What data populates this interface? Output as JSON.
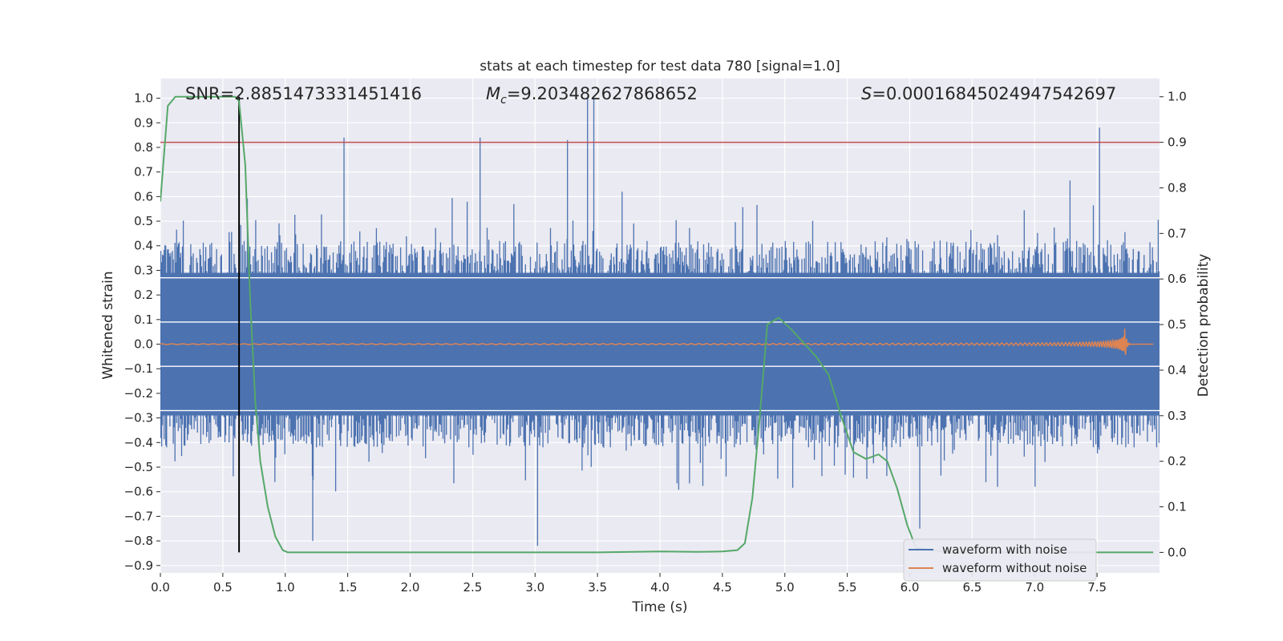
{
  "chart_data": {
    "type": "line",
    "title": "stats at each timestep for test data 780 [signal=1.0]",
    "xlabel": "Time (s)",
    "ylabel": "Whitened strain",
    "ylabel_right": "Detection probability",
    "xlim": [
      0.0,
      8.0
    ],
    "ylim": [
      -0.93,
      1.08
    ],
    "ylim_right": [
      -0.045,
      1.04
    ],
    "x_ticks": [
      "0.0",
      "0.5",
      "1.0",
      "1.5",
      "2.0",
      "2.5",
      "3.0",
      "3.5",
      "4.0",
      "4.5",
      "5.0",
      "5.5",
      "6.0",
      "6.5",
      "7.0",
      "7.5"
    ],
    "y_ticks": [
      "1.0",
      "0.9",
      "0.8",
      "0.7",
      "0.6",
      "0.5",
      "0.4",
      "0.3",
      "0.2",
      "0.1",
      "0.0",
      "−0.1",
      "−0.2",
      "−0.3",
      "−0.4",
      "−0.5",
      "−0.6",
      "−0.7",
      "−0.8",
      "−0.9"
    ],
    "y_ticks_right": [
      "1.0",
      "0.9",
      "0.8",
      "0.7",
      "0.6",
      "0.5",
      "0.4",
      "0.3",
      "0.2",
      "0.1",
      "0.0"
    ],
    "annotations": {
      "snr": "SNR=2.8851473331451416",
      "mc_symbol": "M",
      "mc_sub": "c",
      "mc_value": "=9.203482627868652",
      "s_symbol": "S",
      "s_value": "=0.00016845024947542697"
    },
    "legend": {
      "placement": "lower-right",
      "entries": [
        "waveform with noise",
        "waveform without noise"
      ]
    },
    "series": [
      {
        "name": "waveform with noise",
        "color": "#4c72b0",
        "kind": "noise",
        "envelope": {
          "typical_abs_max": 0.42,
          "peak_max": 1.0,
          "min": -0.82
        },
        "notable_peaks": [
          [
            0.63,
            0.77
          ],
          [
            1.47,
            0.84
          ],
          [
            2.56,
            0.84
          ],
          [
            3.26,
            0.83
          ],
          [
            3.42,
            1.0
          ],
          [
            3.47,
            1.0
          ],
          [
            7.52,
            0.88
          ],
          [
            3.02,
            -0.82
          ],
          [
            1.22,
            -0.8
          ],
          [
            6.08,
            -0.75
          ]
        ]
      },
      {
        "name": "waveform without noise",
        "color": "#dd8452",
        "kind": "chirp",
        "t_merger": 7.72,
        "peak_amplitude": 0.09
      },
      {
        "name": "detection probability",
        "color": "#55a868",
        "axis": "right",
        "x": [
          0.0,
          0.06,
          0.12,
          0.2,
          0.3,
          0.4,
          0.5,
          0.6,
          0.63,
          0.68,
          0.72,
          0.76,
          0.8,
          0.86,
          0.92,
          0.98,
          1.02,
          1.5,
          2.0,
          2.5,
          3.0,
          3.5,
          4.0,
          4.3,
          4.5,
          4.62,
          4.68,
          4.74,
          4.8,
          4.86,
          4.95,
          5.05,
          5.15,
          5.25,
          5.35,
          5.45,
          5.55,
          5.65,
          5.75,
          5.82,
          5.9,
          5.98,
          6.05,
          6.3,
          6.7,
          7.2,
          7.6,
          7.95
        ],
        "y": [
          0.77,
          0.98,
          1.0,
          1.0,
          1.0,
          1.0,
          1.0,
          1.0,
          0.99,
          0.85,
          0.55,
          0.33,
          0.2,
          0.1,
          0.035,
          0.005,
          0.0,
          0.0,
          0.0,
          0.0,
          0.0,
          0.0,
          0.002,
          0.001,
          0.002,
          0.005,
          0.02,
          0.12,
          0.3,
          0.5,
          0.515,
          0.49,
          0.46,
          0.43,
          0.39,
          0.3,
          0.22,
          0.205,
          0.215,
          0.2,
          0.14,
          0.06,
          0.01,
          0.0,
          0.0,
          0.0,
          0.0,
          0.0
        ]
      }
    ],
    "reference_lines": {
      "threshold_hline_right": 0.9,
      "threshold_color": "#c44e52",
      "marker_vline_x": 0.63,
      "marker_color": "#000000"
    },
    "grid": true,
    "background": "#eaeaf2"
  }
}
